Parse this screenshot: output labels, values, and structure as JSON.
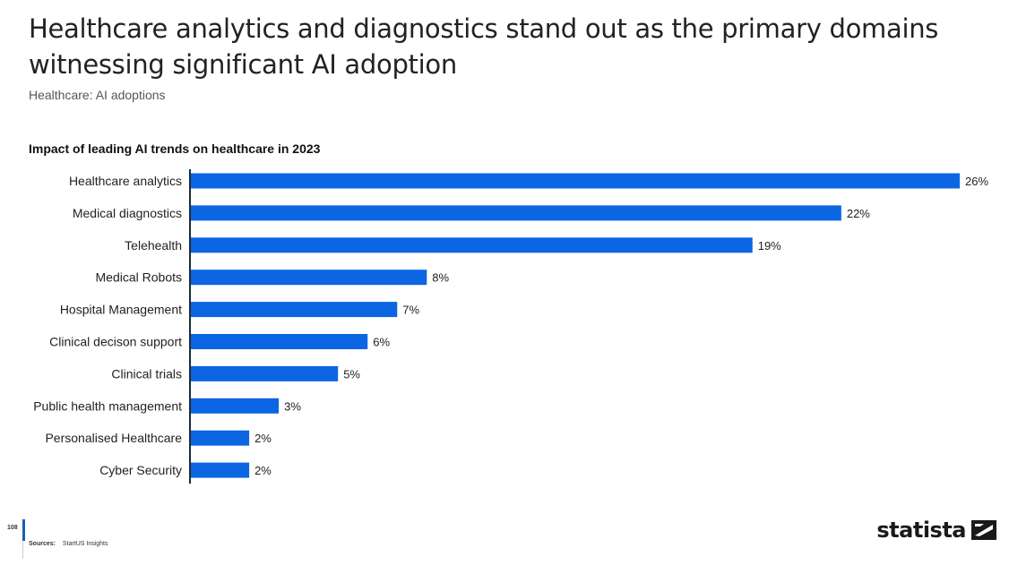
{
  "header": {
    "headline": "Healthcare analytics and diagnostics stand out as the primary domains witnessing significant AI adoption",
    "subheadline": "Healthcare: AI adoptions"
  },
  "footer": {
    "page_number": "108",
    "sources_label": "Sources:",
    "sources_value": "StartUS Insights",
    "brand": "statista"
  },
  "colors": {
    "bar": "#0c65e3",
    "axis": "#1e2a3a"
  },
  "chart_data": {
    "type": "bar",
    "orientation": "horizontal",
    "title": "Impact of leading AI trends on healthcare in 2023",
    "categories": [
      "Healthcare analytics",
      "Medical diagnostics",
      "Telehealth",
      "Medical Robots",
      "Hospital Management",
      "Clinical decison support",
      "Clinical trials",
      "Public health management",
      "Personalised Healthcare",
      "Cyber Security"
    ],
    "values": [
      26,
      22,
      19,
      8,
      7,
      6,
      5,
      3,
      2,
      2
    ],
    "value_labels": [
      "26%",
      "22%",
      "19%",
      "8%",
      "7%",
      "6%",
      "5%",
      "3%",
      "2%",
      "2%"
    ],
    "unit": "%",
    "xlim": [
      0,
      26
    ],
    "grid": false,
    "legend": "none"
  }
}
